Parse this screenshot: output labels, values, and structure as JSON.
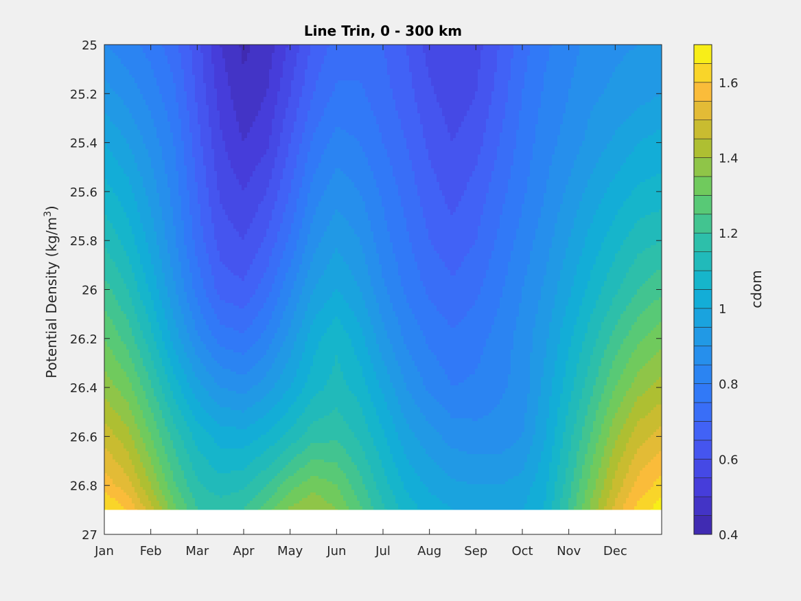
{
  "chart_data": {
    "type": "heatmap",
    "subtype": "filled-contour",
    "title": "Line Trin, 0 - 300 km",
    "xlabel": "",
    "ylabel": "Potential Density (kg/m",
    "ylabel_superscript": "3",
    "ylabel_suffix": ")",
    "x_tick_labels": [
      "Jan",
      "Feb",
      "Mar",
      "Apr",
      "May",
      "Jun",
      "Jul",
      "Aug",
      "Sep",
      "Oct",
      "Nov",
      "Dec"
    ],
    "x_tick_values": [
      0,
      1,
      2,
      3,
      4,
      5,
      6,
      7,
      8,
      9,
      10,
      11
    ],
    "xlim": [
      0,
      12
    ],
    "y_tick_labels": [
      "25",
      "25.2",
      "25.4",
      "25.6",
      "25.8",
      "26",
      "26.2",
      "26.4",
      "26.6",
      "26.8",
      "27"
    ],
    "y_tick_values": [
      25,
      25.2,
      25.4,
      25.6,
      25.8,
      26,
      26.2,
      26.4,
      26.6,
      26.8,
      27
    ],
    "ylim": [
      25,
      27
    ],
    "y_reversed": true,
    "data_max_density": 26.9,
    "grid": false,
    "colorbar": {
      "label": "cdom",
      "range": [
        0.4,
        1.7
      ],
      "tick_labels": [
        "0.4",
        "0.6",
        "0.8",
        "1",
        "1.2",
        "1.4",
        "1.6"
      ],
      "tick_values": [
        0.4,
        0.6,
        0.8,
        1.0,
        1.2,
        1.4,
        1.6
      ],
      "levels": 26,
      "colormap": "parula"
    },
    "grid_x": [
      0,
      0.5,
      1,
      1.5,
      2,
      2.5,
      3,
      3.5,
      4,
      4.5,
      5,
      5.5,
      6,
      6.5,
      7,
      7.5,
      8,
      8.5,
      9,
      9.5,
      10,
      10.5,
      11,
      11.5,
      12
    ],
    "grid_y": [
      25.0,
      25.2,
      25.4,
      25.6,
      25.8,
      26.0,
      26.2,
      26.4,
      26.6,
      26.8,
      26.9
    ],
    "z": [
      [
        0.85,
        0.82,
        0.78,
        0.72,
        0.62,
        0.5,
        0.44,
        0.47,
        0.56,
        0.66,
        0.72,
        0.72,
        0.7,
        0.65,
        0.58,
        0.55,
        0.58,
        0.65,
        0.73,
        0.79,
        0.83,
        0.87,
        0.89,
        0.9,
        0.9
      ],
      [
        0.92,
        0.88,
        0.83,
        0.76,
        0.64,
        0.53,
        0.46,
        0.5,
        0.6,
        0.7,
        0.76,
        0.76,
        0.72,
        0.67,
        0.61,
        0.57,
        0.6,
        0.67,
        0.75,
        0.81,
        0.85,
        0.89,
        0.91,
        0.93,
        0.95
      ],
      [
        1.0,
        0.95,
        0.88,
        0.8,
        0.67,
        0.56,
        0.5,
        0.54,
        0.65,
        0.76,
        0.82,
        0.8,
        0.75,
        0.7,
        0.64,
        0.6,
        0.63,
        0.7,
        0.77,
        0.83,
        0.87,
        0.92,
        0.96,
        1.0,
        1.02
      ],
      [
        1.07,
        1.02,
        0.93,
        0.83,
        0.7,
        0.59,
        0.55,
        0.6,
        0.7,
        0.82,
        0.88,
        0.85,
        0.79,
        0.73,
        0.67,
        0.63,
        0.67,
        0.73,
        0.79,
        0.85,
        0.91,
        0.97,
        1.02,
        1.06,
        1.07
      ],
      [
        1.14,
        1.08,
        0.98,
        0.86,
        0.73,
        0.63,
        0.6,
        0.66,
        0.76,
        0.88,
        0.94,
        0.9,
        0.82,
        0.76,
        0.7,
        0.67,
        0.7,
        0.76,
        0.82,
        0.88,
        0.95,
        1.02,
        1.08,
        1.13,
        1.15
      ],
      [
        1.22,
        1.15,
        1.04,
        0.91,
        0.78,
        0.68,
        0.66,
        0.73,
        0.84,
        0.95,
        1.0,
        0.95,
        0.86,
        0.79,
        0.74,
        0.71,
        0.74,
        0.79,
        0.85,
        0.91,
        0.99,
        1.07,
        1.14,
        1.2,
        1.24
      ],
      [
        1.3,
        1.23,
        1.12,
        0.98,
        0.86,
        0.78,
        0.76,
        0.82,
        0.92,
        1.03,
        1.09,
        1.02,
        0.92,
        0.84,
        0.79,
        0.76,
        0.78,
        0.82,
        0.87,
        0.94,
        1.04,
        1.13,
        1.22,
        1.29,
        1.33
      ],
      [
        1.38,
        1.32,
        1.21,
        1.08,
        0.97,
        0.9,
        0.88,
        0.93,
        1.0,
        1.08,
        1.12,
        1.08,
        0.99,
        0.9,
        0.84,
        0.8,
        0.81,
        0.84,
        0.87,
        0.97,
        1.08,
        1.19,
        1.3,
        1.38,
        1.42
      ],
      [
        1.48,
        1.42,
        1.3,
        1.18,
        1.08,
        1.03,
        1.02,
        1.06,
        1.12,
        1.18,
        1.19,
        1.14,
        1.06,
        0.97,
        0.92,
        0.88,
        0.87,
        0.87,
        0.9,
        1.0,
        1.13,
        1.26,
        1.39,
        1.48,
        1.52
      ],
      [
        1.58,
        1.52,
        1.4,
        1.26,
        1.16,
        1.12,
        1.14,
        1.2,
        1.28,
        1.33,
        1.3,
        1.22,
        1.12,
        1.04,
        0.99,
        0.96,
        0.95,
        0.95,
        0.97,
        1.04,
        1.18,
        1.33,
        1.47,
        1.57,
        1.62
      ],
      [
        1.66,
        1.6,
        1.47,
        1.32,
        1.2,
        1.18,
        1.2,
        1.28,
        1.36,
        1.4,
        1.35,
        1.26,
        1.16,
        1.08,
        1.03,
        1.0,
        0.98,
        0.98,
        1.0,
        1.06,
        1.21,
        1.37,
        1.52,
        1.62,
        1.68
      ]
    ]
  }
}
